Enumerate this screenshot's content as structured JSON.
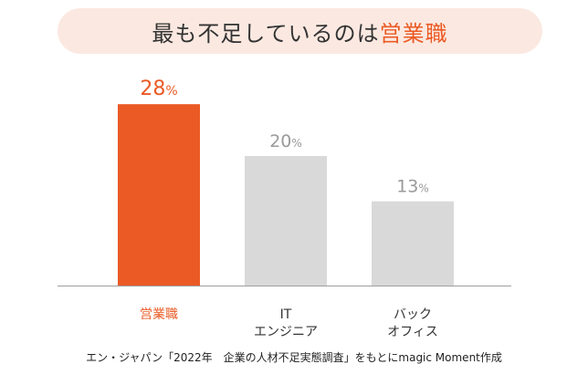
{
  "title": {
    "prefix": "最も不足しているのは",
    "highlight": "営業職"
  },
  "colors": {
    "highlight": "#eb5a24",
    "bar_muted": "#d9d9d9",
    "label_muted": "#9a9a9a",
    "title_bg": "#fbe9e1"
  },
  "chart_data": {
    "type": "bar",
    "categories": [
      "営業職",
      "IT\nエンジニア",
      "バック\nオフィス"
    ],
    "values": [
      28,
      20,
      13
    ],
    "value_labels": [
      {
        "num": "28",
        "unit": "%"
      },
      {
        "num": "20",
        "unit": "%"
      },
      {
        "num": "13",
        "unit": "%"
      }
    ],
    "highlight_index": 0,
    "ylim": [
      0,
      30
    ],
    "grid": false,
    "legend": "none"
  },
  "source": "エン・ジャパン「2022年　企業の人材不足実態調査」をもとにmagic Moment作成"
}
